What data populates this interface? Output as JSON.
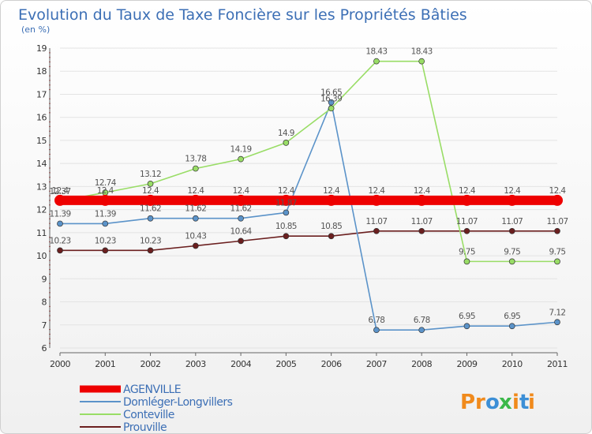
{
  "chart_data": {
    "type": "line",
    "title": "Evolution du Taux de Taxe Foncière sur les Propriétés Bâties",
    "subtitle": "(en %)",
    "xlabel": "",
    "ylabel": "",
    "ylim": [
      6,
      19
    ],
    "yticks": [
      "6",
      "7",
      "8",
      "9",
      "10",
      "11",
      "12",
      "13",
      "14",
      "15",
      "16",
      "17",
      "18",
      "19"
    ],
    "categories": [
      "2000",
      "2001",
      "2002",
      "2003",
      "2004",
      "2005",
      "2006",
      "2007",
      "2008",
      "2009",
      "2010",
      "2011"
    ],
    "legend_position": "bottom-left",
    "series": [
      {
        "name": "Prouville",
        "color": "#6b1f1f",
        "values": [
          10.23,
          10.23,
          10.23,
          10.43,
          10.64,
          10.85,
          10.85,
          11.07,
          11.07,
          11.07,
          11.07,
          11.07
        ],
        "labels": [
          "10.23",
          "10.23",
          "10.23",
          "10.43",
          "10.64",
          "10.85",
          "10.85",
          "11.07",
          "11.07",
          "11.07",
          "11.07",
          "11.07"
        ]
      },
      {
        "name": "Domléger-Longvillers",
        "color": "#5b93c9",
        "values": [
          11.39,
          11.39,
          11.62,
          11.62,
          11.62,
          11.87,
          16.65,
          6.78,
          6.78,
          6.95,
          6.95,
          7.12
        ],
        "labels": [
          "11.39",
          "11.39",
          "11.62",
          "11.62",
          "11.62",
          "11.87",
          "16.65",
          "6.78",
          "6.78",
          "6.95",
          "6.95",
          "7.12"
        ]
      },
      {
        "name": "Conteville",
        "color": "#99dd66",
        "values": [
          12.37,
          12.74,
          13.12,
          13.78,
          14.19,
          14.9,
          16.39,
          18.43,
          18.43,
          9.75,
          9.75,
          9.75
        ],
        "labels": [
          "12.37",
          "12.74",
          "13.12",
          "13.78",
          "14.19",
          "14.9",
          "16.39",
          "18.43",
          "18.43",
          "9.75",
          "9.75",
          "9.75"
        ]
      },
      {
        "name": "AGENVILLE",
        "color": "#ee0000",
        "values": [
          12.4,
          12.4,
          12.4,
          12.4,
          12.4,
          12.4,
          12.4,
          12.4,
          12.4,
          12.4,
          12.4,
          12.4
        ],
        "labels": [
          "12.4",
          "12.4",
          "12.4",
          "12.4",
          "12.4",
          "12.4",
          "12.4",
          "12.4",
          "12.4",
          "12.4",
          "12.4",
          "12.4"
        ]
      }
    ],
    "legend": [
      "AGENVILLE",
      "Domléger-Longvillers",
      "Conteville",
      "Prouville"
    ]
  },
  "logo": {
    "letters": [
      "P",
      "r",
      "o",
      "x",
      "i",
      "t",
      "i"
    ],
    "colors": [
      "#f08a1c",
      "#f08a1c",
      "#3c8fd6",
      "#3cb84a",
      "#f08a1c",
      "#3c8fd6",
      "#f08a1c"
    ]
  }
}
